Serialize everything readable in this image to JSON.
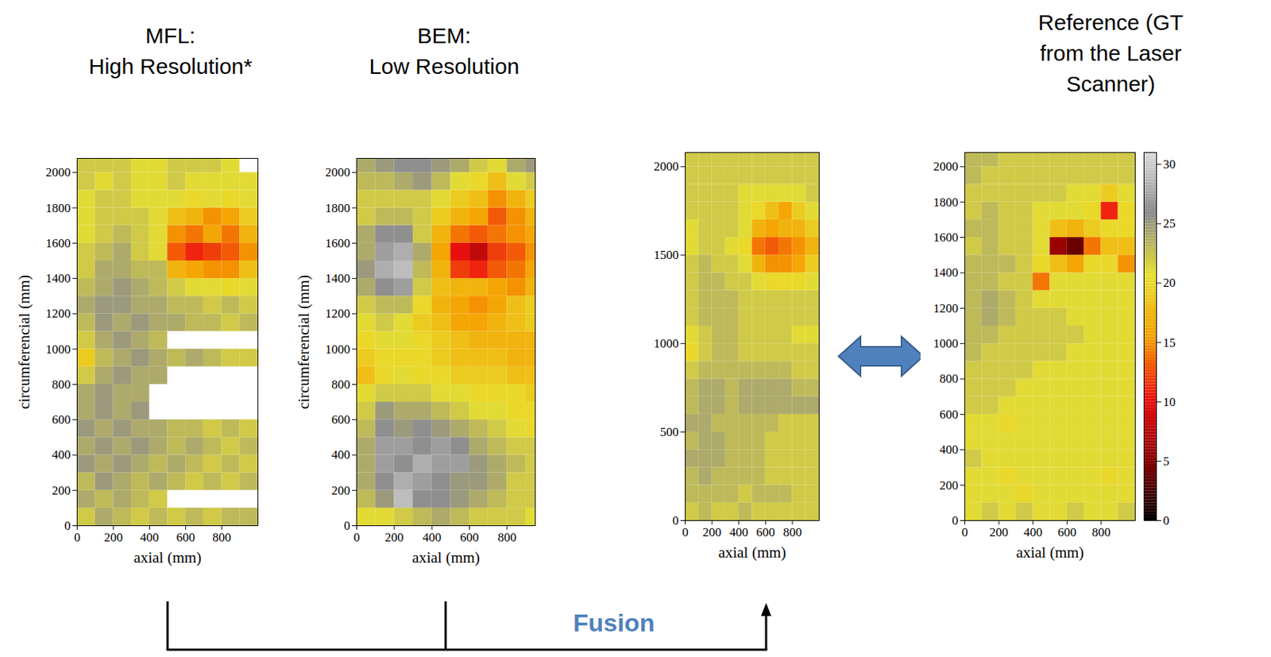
{
  "chart_data": [
    {
      "type": "heatmap",
      "title": "MFL: High Resolution*",
      "x_label": "axial (mm)",
      "y_label": "circumferencial (mm)",
      "xlim": [
        0,
        1000
      ],
      "ylim": [
        0,
        2080
      ],
      "xticks": [
        0,
        200,
        400,
        600,
        800
      ],
      "yticks": [
        0,
        200,
        400,
        600,
        800,
        1000,
        1200,
        1400,
        1600,
        1800,
        2000
      ],
      "x": [
        50,
        150,
        250,
        350,
        450,
        550,
        650,
        750,
        850,
        950
      ],
      "y": [
        50,
        150,
        250,
        350,
        450,
        550,
        650,
        750,
        850,
        950,
        1050,
        1150,
        1250,
        1350,
        1450,
        1550,
        1650,
        1750,
        1850,
        1950,
        2050
      ],
      "values": [
        [
          22,
          24,
          23,
          22,
          23,
          22,
          23,
          22,
          23,
          23
        ],
        [
          24,
          23,
          24,
          23,
          22,
          null,
          null,
          null,
          null,
          null
        ],
        [
          23,
          25,
          24,
          23,
          24,
          23,
          22,
          23,
          22,
          23
        ],
        [
          25,
          24,
          25,
          24,
          23,
          24,
          23,
          22,
          23,
          22
        ],
        [
          24,
          25,
          24,
          25,
          24,
          23,
          24,
          23,
          22,
          23
        ],
        [
          25,
          24,
          25,
          24,
          24,
          23,
          23,
          22,
          23,
          22
        ],
        [
          24,
          25,
          24,
          25,
          null,
          null,
          null,
          null,
          null,
          null
        ],
        [
          24,
          25,
          24,
          24,
          null,
          null,
          null,
          null,
          null,
          null
        ],
        [
          22,
          24,
          25,
          24,
          24,
          null,
          null,
          null,
          null,
          null
        ],
        [
          19,
          23,
          24,
          25,
          24,
          23,
          24,
          23,
          22,
          22
        ],
        [
          22,
          24,
          25,
          24,
          23,
          null,
          null,
          null,
          null,
          null
        ],
        [
          23,
          25,
          24,
          25,
          24,
          24,
          23,
          23,
          22,
          23
        ],
        [
          24,
          25,
          25,
          24,
          24,
          23,
          23,
          22,
          23,
          22
        ],
        [
          23,
          24,
          25,
          24,
          23,
          22,
          21,
          21,
          20,
          21
        ],
        [
          22,
          24,
          24,
          23,
          23,
          17,
          16,
          15,
          15,
          18
        ],
        [
          22,
          23,
          24,
          22,
          21,
          13,
          11,
          12,
          13,
          15
        ],
        [
          21,
          22,
          23,
          22,
          21,
          15,
          14,
          16,
          14,
          17
        ],
        [
          21,
          22,
          22,
          22,
          21,
          18,
          17,
          15,
          16,
          19
        ],
        [
          21,
          22,
          22,
          21,
          21,
          21,
          20,
          21,
          20,
          21
        ],
        [
          22,
          21,
          22,
          21,
          21,
          22,
          21,
          21,
          21,
          21
        ],
        [
          22,
          22,
          22,
          21,
          21,
          22,
          22,
          22,
          21,
          null
        ]
      ]
    },
    {
      "type": "heatmap",
      "title": "BEM: Low Resolution",
      "x_label": "axial (mm)",
      "y_label": "circumferencial (mm)",
      "xlim": [
        0,
        950
      ],
      "ylim": [
        0,
        2080
      ],
      "xticks": [
        0,
        200,
        400,
        600,
        800
      ],
      "yticks": [
        0,
        200,
        400,
        600,
        800,
        1000,
        1200,
        1400,
        1600,
        1800,
        2000
      ],
      "x": [
        50,
        150,
        250,
        350,
        450,
        550,
        650,
        750,
        850,
        950
      ],
      "y": [
        50,
        150,
        250,
        350,
        450,
        550,
        650,
        750,
        850,
        950,
        1050,
        1150,
        1250,
        1350,
        1450,
        1550,
        1650,
        1750,
        1850,
        1950,
        2050
      ],
      "values": [
        [
          21,
          21,
          22,
          23,
          24,
          23,
          22,
          22,
          22,
          21
        ],
        [
          23,
          25,
          29,
          26,
          26,
          25,
          24,
          23,
          22,
          22
        ],
        [
          24,
          26,
          28,
          27,
          26,
          25,
          25,
          24,
          22,
          22
        ],
        [
          24,
          27,
          26,
          28,
          27,
          27,
          25,
          24,
          23,
          22
        ],
        [
          24,
          27,
          27,
          26,
          27,
          26,
          24,
          23,
          22,
          22
        ],
        [
          23,
          26,
          25,
          26,
          25,
          24,
          23,
          22,
          21,
          20
        ],
        [
          22,
          25,
          24,
          24,
          23,
          22,
          21,
          21,
          20,
          20
        ],
        [
          21,
          22,
          22,
          22,
          21,
          21,
          20,
          20,
          20,
          19
        ],
        [
          18,
          20,
          21,
          20,
          20,
          19,
          19,
          19,
          18,
          18
        ],
        [
          19,
          20,
          20,
          20,
          19,
          18,
          18,
          18,
          17,
          17
        ],
        [
          20,
          21,
          21,
          20,
          19,
          18,
          17,
          17,
          17,
          17
        ],
        [
          21,
          22,
          21,
          19,
          18,
          16,
          16,
          17,
          18,
          19
        ],
        [
          22,
          23,
          23,
          20,
          17,
          16,
          15,
          16,
          18,
          19
        ],
        [
          24,
          26,
          27,
          22,
          18,
          17,
          17,
          16,
          15,
          17
        ],
        [
          25,
          28,
          29,
          23,
          17,
          12,
          11,
          13,
          14,
          16
        ],
        [
          24,
          27,
          28,
          24,
          16,
          10,
          8,
          12,
          13,
          15
        ],
        [
          24,
          26,
          26,
          22,
          17,
          14,
          13,
          14,
          15,
          16
        ],
        [
          22,
          23,
          23,
          22,
          19,
          17,
          16,
          13,
          15,
          17
        ],
        [
          22,
          22,
          22,
          22,
          21,
          19,
          18,
          15,
          17,
          19
        ],
        [
          23,
          23,
          24,
          25,
          23,
          21,
          20,
          18,
          21,
          22
        ],
        [
          24,
          25,
          26,
          26,
          25,
          24,
          22,
          21,
          24,
          25
        ]
      ]
    },
    {
      "type": "heatmap",
      "x_label": "axial (mm)",
      "xlim": [
        0,
        1000
      ],
      "ylim": [
        0,
        2080
      ],
      "xticks": [
        0,
        200,
        400,
        600,
        800
      ],
      "yticks": [
        0,
        500,
        1000,
        1500,
        2000
      ],
      "x": [
        50,
        150,
        250,
        350,
        450,
        550,
        650,
        750,
        850,
        950
      ],
      "y": [
        50,
        150,
        250,
        350,
        450,
        550,
        650,
        750,
        850,
        950,
        1050,
        1150,
        1250,
        1350,
        1450,
        1550,
        1650,
        1750,
        1850,
        1950,
        2050
      ],
      "values": [
        [
          22,
          23,
          22,
          22,
          23,
          22,
          22,
          22,
          22,
          22
        ],
        [
          23,
          23,
          23,
          23,
          22,
          23,
          23,
          23,
          22,
          22
        ],
        [
          23,
          24,
          23,
          23,
          23,
          23,
          22,
          22,
          22,
          22
        ],
        [
          24,
          24,
          24,
          23,
          23,
          23,
          22,
          22,
          22,
          22
        ],
        [
          23,
          24,
          24,
          23,
          23,
          23,
          22,
          22,
          22,
          22
        ],
        [
          24,
          24,
          23,
          23,
          23,
          23,
          23,
          22,
          22,
          22
        ],
        [
          23,
          24,
          24,
          23,
          24,
          24,
          24,
          24,
          24,
          24
        ],
        [
          23,
          24,
          24,
          23,
          24,
          24,
          24,
          24,
          23,
          23
        ],
        [
          22,
          23,
          23,
          23,
          23,
          23,
          23,
          23,
          22,
          22
        ],
        [
          20,
          22,
          23,
          23,
          22,
          22,
          22,
          22,
          22,
          22
        ],
        [
          21,
          22,
          23,
          23,
          22,
          22,
          22,
          22,
          21,
          21
        ],
        [
          22,
          23,
          23,
          23,
          22,
          22,
          22,
          22,
          22,
          22
        ],
        [
          22,
          23,
          23,
          23,
          22,
          22,
          22,
          22,
          22,
          22
        ],
        [
          22,
          23,
          23,
          22,
          22,
          21,
          20,
          20,
          20,
          21
        ],
        [
          22,
          23,
          22,
          22,
          21,
          17,
          15,
          15,
          16,
          19
        ],
        [
          21,
          22,
          22,
          21,
          20,
          14,
          13,
          14,
          15,
          17
        ],
        [
          21,
          22,
          22,
          22,
          21,
          17,
          16,
          17,
          17,
          19
        ],
        [
          22,
          22,
          22,
          22,
          21,
          20,
          18,
          16,
          19,
          21
        ],
        [
          22,
          22,
          22,
          22,
          21,
          21,
          21,
          21,
          21,
          22
        ],
        [
          22,
          22,
          22,
          22,
          22,
          22,
          22,
          22,
          22,
          22
        ],
        [
          22,
          22,
          22,
          22,
          22,
          22,
          22,
          22,
          22,
          22
        ]
      ]
    },
    {
      "type": "heatmap",
      "title": "Reference (GT from the Laser Scanner)",
      "x_label": "axial (mm)",
      "xlim": [
        0,
        1000
      ],
      "ylim": [
        0,
        2080
      ],
      "xticks": [
        0,
        200,
        400,
        600,
        800
      ],
      "yticks": [
        0,
        200,
        400,
        600,
        800,
        1000,
        1200,
        1400,
        1600,
        1800,
        2000
      ],
      "x": [
        50,
        150,
        250,
        350,
        450,
        550,
        650,
        750,
        850,
        950
      ],
      "y": [
        50,
        150,
        250,
        350,
        450,
        550,
        650,
        750,
        850,
        950,
        1050,
        1150,
        1250,
        1350,
        1450,
        1550,
        1650,
        1750,
        1850,
        1950,
        2050
      ],
      "values": [
        [
          21,
          22,
          21,
          22,
          21,
          21,
          22,
          21,
          21,
          22
        ],
        [
          21,
          21,
          21,
          20,
          21,
          21,
          21,
          21,
          21,
          21
        ],
        [
          21,
          21,
          20,
          21,
          21,
          21,
          21,
          21,
          20,
          21
        ],
        [
          22,
          21,
          21,
          21,
          21,
          21,
          21,
          21,
          21,
          21
        ],
        [
          21,
          21,
          21,
          21,
          21,
          21,
          21,
          21,
          21,
          21
        ],
        [
          21,
          21,
          20,
          21,
          21,
          21,
          21,
          21,
          21,
          21
        ],
        [
          22,
          22,
          21,
          21,
          21,
          21,
          21,
          21,
          21,
          21
        ],
        [
          22,
          22,
          22,
          21,
          21,
          21,
          21,
          21,
          21,
          21
        ],
        [
          22,
          22,
          22,
          22,
          21,
          21,
          21,
          21,
          21,
          21
        ],
        [
          23,
          22,
          22,
          22,
          22,
          22,
          21,
          21,
          21,
          21
        ],
        [
          23,
          23,
          22,
          22,
          22,
          22,
          22,
          21,
          21,
          21
        ],
        [
          23,
          24,
          23,
          22,
          22,
          22,
          21,
          21,
          21,
          21
        ],
        [
          23,
          24,
          23,
          22,
          21,
          21,
          21,
          21,
          21,
          21
        ],
        [
          23,
          23,
          22,
          22,
          14,
          21,
          21,
          21,
          21,
          21
        ],
        [
          23,
          23,
          23,
          22,
          20,
          18,
          16,
          20,
          20,
          15
        ],
        [
          22,
          23,
          22,
          22,
          21,
          6,
          4,
          14,
          18,
          18
        ],
        [
          23,
          23,
          22,
          22,
          21,
          18,
          17,
          19,
          20,
          20
        ],
        [
          22,
          23,
          22,
          22,
          21,
          21,
          21,
          20,
          11,
          20
        ],
        [
          22,
          22,
          22,
          22,
          22,
          22,
          21,
          21,
          19,
          21
        ],
        [
          23,
          22,
          22,
          22,
          22,
          22,
          22,
          22,
          22,
          22
        ],
        [
          23,
          23,
          22,
          22,
          22,
          22,
          22,
          22,
          22,
          22
        ]
      ],
      "colorbar": {
        "range": [
          0,
          31
        ],
        "ticks": [
          0,
          5,
          10,
          15,
          20,
          25,
          30
        ]
      }
    }
  ],
  "diagram": {
    "fusion_label": "Fusion"
  }
}
